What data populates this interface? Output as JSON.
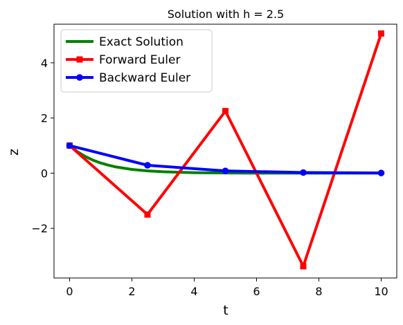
{
  "chart_data": {
    "type": "line",
    "title": "Solution with h = 2.5",
    "xlabel": "t",
    "ylabel": "z",
    "xlim": [
      -0.5,
      10.5
    ],
    "ylim": [
      -3.8,
      5.4
    ],
    "xticks": [
      0,
      2,
      4,
      6,
      8,
      10
    ],
    "xtick_labels": [
      "0",
      "2",
      "4",
      "6",
      "8",
      "10"
    ],
    "yticks": [
      -2,
      0,
      2,
      4
    ],
    "ytick_labels": [
      "−2",
      "0",
      "2",
      "4"
    ],
    "grid": false,
    "legend_position": "upper-left",
    "series": [
      {
        "name": "Exact Solution",
        "color": "#008000",
        "marker": "none",
        "function": "exp(-t)",
        "x": [
          0,
          0.25,
          0.5,
          0.75,
          1,
          1.25,
          1.5,
          2,
          2.5,
          3,
          4,
          5,
          6,
          7,
          8,
          9,
          10
        ],
        "y": [
          1,
          0.779,
          0.607,
          0.472,
          0.368,
          0.287,
          0.223,
          0.135,
          0.082,
          0.05,
          0.018,
          0.007,
          0.002,
          0.001,
          0.0,
          0.0,
          0.0
        ]
      },
      {
        "name": "Forward Euler",
        "color": "#ff0000",
        "marker": "square",
        "x": [
          0,
          2.5,
          5,
          7.5,
          10
        ],
        "y": [
          1,
          -1.5,
          2.25,
          -3.375,
          5.0625
        ]
      },
      {
        "name": "Backward Euler",
        "color": "#0000ff",
        "marker": "circle",
        "x": [
          0,
          2.5,
          5,
          7.5,
          10
        ],
        "y": [
          1,
          0.286,
          0.082,
          0.023,
          0.007
        ]
      }
    ]
  }
}
